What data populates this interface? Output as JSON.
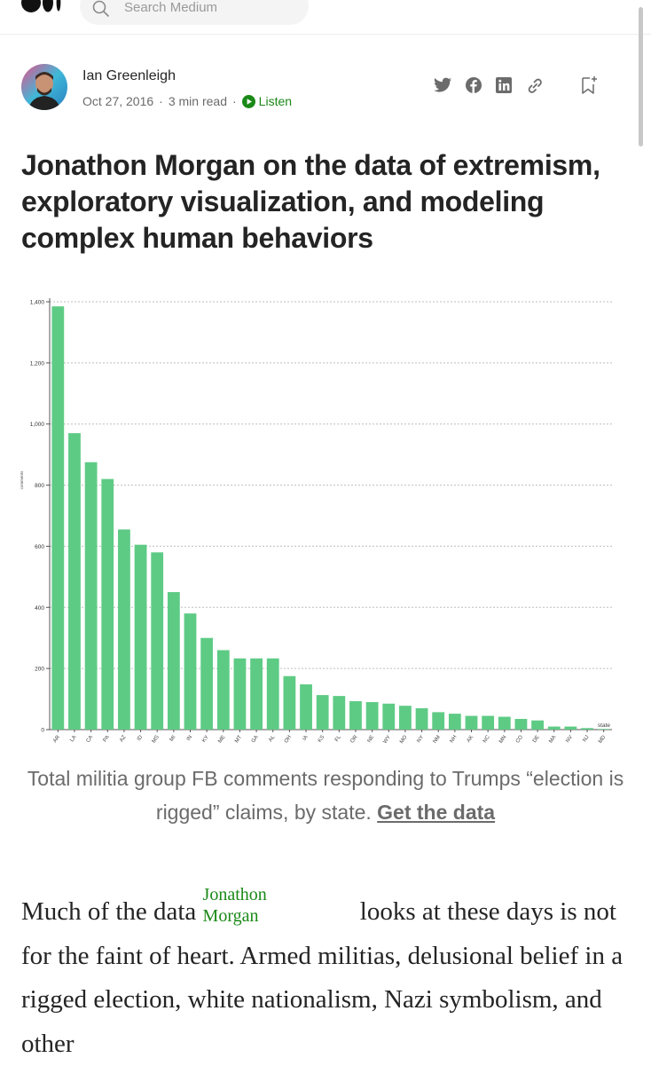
{
  "header": {
    "search_placeholder": "Search Medium"
  },
  "author": {
    "name": "Ian Greenleigh",
    "date": "Oct 27, 2016",
    "read_time": "3 min read",
    "listen_label": "Listen"
  },
  "share_icons": [
    "twitter-icon",
    "facebook-icon",
    "linkedin-icon",
    "link-icon",
    "bookmark-add-icon"
  ],
  "article": {
    "title": "Jonathon Morgan on the data of extremism, exploratory visualization, and modeling complex human behaviors",
    "caption_text": "Total militia group FB comments responding to Trumps “election is rigged” claims, by state.",
    "caption_link": "Get the data",
    "body_start": "Much of the data",
    "mention_first": "Jonathon",
    "mention_last": "Morgan",
    "body_rest": "looks at these days is not for the faint of heart. Armed militias, delusional belief in a rigged election, white nationalism, Nazi symbolism, and other"
  },
  "colors": {
    "bar": "#5ecb85",
    "accent": "#1a8917",
    "text": "#242424",
    "muted": "#6b6b6b"
  },
  "chart_data": {
    "type": "bar",
    "title": "",
    "xlabel": "state",
    "ylabel": "comments",
    "ylim": [
      0,
      1400
    ],
    "yticks": [
      "0",
      "200",
      "400",
      "600",
      "800",
      "1,000",
      "1,200",
      "1,400"
    ],
    "ytick_values": [
      0,
      200,
      400,
      600,
      800,
      1000,
      1200,
      1400
    ],
    "grid": true,
    "categories": [
      "AR",
      "LA",
      "CA",
      "PA",
      "AZ",
      "ID",
      "MS",
      "MI",
      "IN",
      "KY",
      "ME",
      "MT",
      "GA",
      "AL",
      "OH",
      "IA",
      "KS",
      "FL",
      "OR",
      "NE",
      "WY",
      "MO",
      "NY",
      "NM",
      "NH",
      "AK",
      "NC",
      "MN",
      "CO",
      "DE",
      "MA",
      "NV",
      "NJ",
      "MD"
    ],
    "values": [
      1385,
      970,
      875,
      820,
      655,
      605,
      580,
      450,
      380,
      300,
      260,
      233,
      233,
      233,
      175,
      148,
      113,
      110,
      93,
      90,
      85,
      78,
      70,
      57,
      52,
      45,
      45,
      42,
      35,
      30,
      10,
      10,
      5,
      2
    ]
  }
}
